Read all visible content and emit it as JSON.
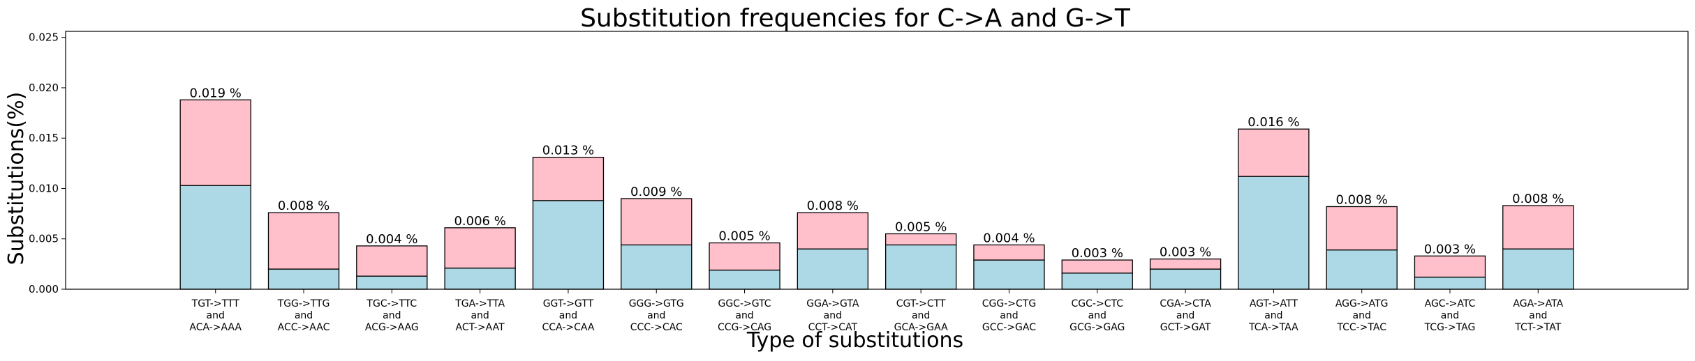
{
  "chart_data": {
    "type": "bar",
    "stacked": true,
    "title": "Substitution frequencies for C->A and G->T",
    "xlabel": "Type of substitutions",
    "ylabel": "Substitutions(%)",
    "ylim": [
      0,
      0.0256
    ],
    "yticks": [
      "0.000",
      "0.005",
      "0.010",
      "0.015",
      "0.020",
      "0.025"
    ],
    "ytick_values": [
      0,
      0.005,
      0.01,
      0.015,
      0.02,
      0.025
    ],
    "grid": false,
    "categories": [
      [
        "TGT->TTT",
        "and",
        "ACA->AAA"
      ],
      [
        "TGG->TTG",
        "and",
        "ACC->AAC"
      ],
      [
        "TGC->TTC",
        "and",
        "ACG->AAG"
      ],
      [
        "TGA->TTA",
        "and",
        "ACT->AAT"
      ],
      [
        "GGT->GTT",
        "and",
        "CCA->CAA"
      ],
      [
        "GGG->GTG",
        "and",
        "CCC->CAC"
      ],
      [
        "GGC->GTC",
        "and",
        "CCG->CAG"
      ],
      [
        "GGA->GTA",
        "and",
        "CCT->CAT"
      ],
      [
        "CGT->CTT",
        "and",
        "GCA->GAA"
      ],
      [
        "CGG->CTG",
        "and",
        "GCC->GAC"
      ],
      [
        "CGC->CTC",
        "and",
        "GCG->GAG"
      ],
      [
        "CGA->CTA",
        "and",
        "GCT->GAT"
      ],
      [
        "AGT->ATT",
        "and",
        "TCA->TAA"
      ],
      [
        "AGG->ATG",
        "and",
        "TCC->TAC"
      ],
      [
        "AGC->ATC",
        "and",
        "TCG->TAG"
      ],
      [
        "AGA->ATA",
        "and",
        "TCT->TAT"
      ]
    ],
    "series": [
      {
        "color": "#add8e6",
        "values": [
          0.0103,
          0.002,
          0.0013,
          0.0021,
          0.0088,
          0.0044,
          0.0019,
          0.004,
          0.0044,
          0.0029,
          0.0016,
          0.002,
          0.0112,
          0.0039,
          0.0012,
          0.004
        ]
      },
      {
        "color": "#ffc0cb",
        "values": [
          0.0085,
          0.0056,
          0.003,
          0.004,
          0.0043,
          0.0046,
          0.0027,
          0.0036,
          0.0011,
          0.0015,
          0.0013,
          0.001,
          0.0047,
          0.0043,
          0.0021,
          0.0043
        ]
      }
    ],
    "totals": [
      0.0188,
      0.0076,
      0.0043,
      0.0061,
      0.0131,
      0.009,
      0.0046,
      0.0076,
      0.0055,
      0.0044,
      0.0029,
      0.003,
      0.0159,
      0.0082,
      0.0033,
      0.0083
    ],
    "data_labels": [
      "0.019 %",
      "0.008 %",
      "0.004 %",
      "0.006 %",
      "0.013 %",
      "0.009 %",
      "0.005 %",
      "0.008 %",
      "0.005 %",
      "0.004 %",
      "0.003 %",
      "0.003 %",
      "0.016 %",
      "0.008 %",
      "0.003 %",
      "0.008 %"
    ],
    "edge_color": "#000000"
  }
}
